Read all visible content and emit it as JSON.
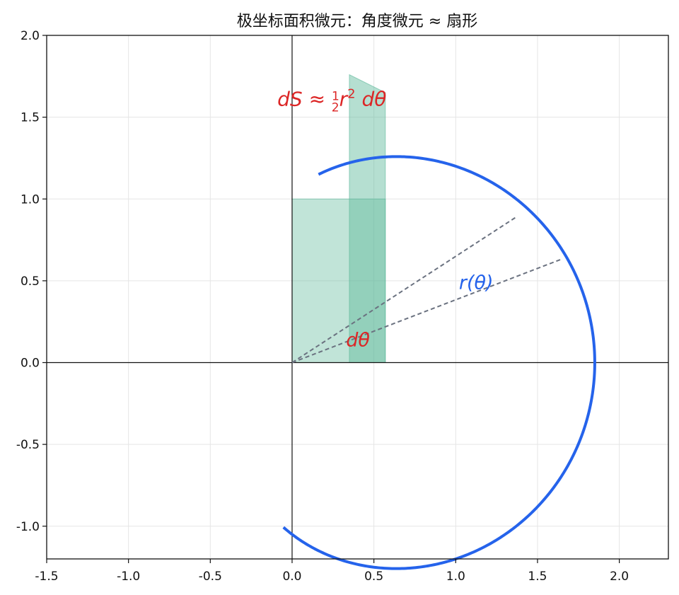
{
  "chart_data": {
    "type": "line",
    "title": "极坐标面积微元：角度微元 ≈ 扇形",
    "xlim": [
      -1.5,
      2.3
    ],
    "ylim": [
      -1.2,
      2.0
    ],
    "x_ticks": [
      -1.5,
      -1.0,
      -0.5,
      0.0,
      0.5,
      1.0,
      1.5,
      2.0
    ],
    "x_tick_labels": [
      "-1.5",
      "-1.0",
      "-0.5",
      "0.0",
      "0.5",
      "1.0",
      "1.5",
      "2.0"
    ],
    "y_ticks": [
      -1.0,
      -0.5,
      0.0,
      0.5,
      1.0,
      1.5,
      2.0
    ],
    "y_tick_labels": [
      "-1.0",
      "-0.5",
      "0.0",
      "0.5",
      "1.0",
      "1.5",
      "2.0"
    ],
    "grid": true,
    "curve": {
      "polar_r": "0.8·(1+cos θ) + 0.25",
      "theta_range_deg": [
        82,
        267
      ],
      "color": "#2563eb"
    },
    "rays": [
      {
        "theta_deg": 21,
        "r": 1.77,
        "style": "dashed",
        "color": "#6b7280"
      },
      {
        "theta_deg": 33,
        "r": 1.63,
        "style": "dashed",
        "color": "#6b7280"
      }
    ],
    "regions": [
      {
        "points": [
          [
            0.35,
            0.0
          ],
          [
            0.35,
            1.76
          ],
          [
            0.57,
            1.65
          ],
          [
            0.57,
            0.0
          ]
        ],
        "color": "#5cb899",
        "opacity": 0.45
      },
      {
        "points": [
          [
            0.0,
            0.0
          ],
          [
            0.0,
            1.0
          ],
          [
            0.57,
            1.0
          ],
          [
            0.57,
            0.0
          ]
        ],
        "color": "#5cb899",
        "opacity": 0.38
      }
    ],
    "annotations": [
      {
        "id": "ds",
        "text": "dS ≈ ½r² dθ",
        "x": -0.09,
        "y": 1.57,
        "color": "#dc2626"
      },
      {
        "id": "dtheta",
        "text": "dθ",
        "x": 0.33,
        "y": 0.1,
        "color": "#dc2626"
      },
      {
        "id": "rtheta",
        "text": "r(θ)",
        "x": 1.02,
        "y": 0.45,
        "color": "#2563eb"
      }
    ]
  }
}
